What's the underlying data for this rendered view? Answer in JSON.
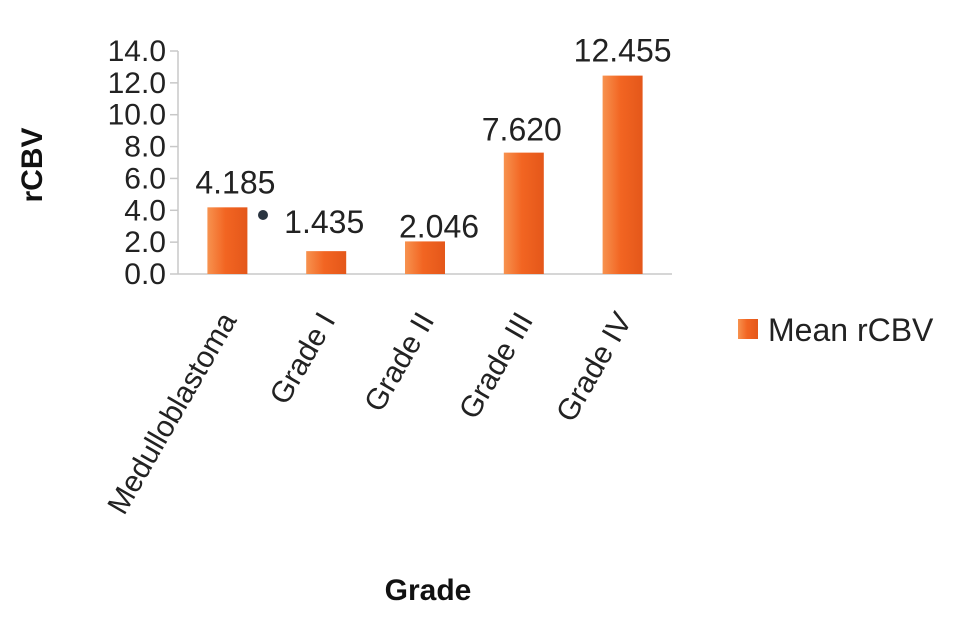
{
  "chart_data": {
    "type": "bar",
    "categories": [
      "Medulloblastoma",
      "Grade I",
      "Grade II",
      "Grade III",
      "Grade IV"
    ],
    "series": [
      {
        "name": "Mean rCBV",
        "values": [
          4.185,
          1.435,
          2.046,
          7.62,
          12.455
        ],
        "labels": [
          "4.185",
          "1.435",
          "2.046",
          "7.620",
          "12.455"
        ],
        "color": "#f26522"
      }
    ],
    "xlabel": "Grade",
    "ylabel": "rCBV",
    "ylim": [
      0,
      14
    ],
    "yticks": [
      "0.0",
      "2.0",
      "4.0",
      "6.0",
      "8.0",
      "10.0",
      "12.0",
      "14.0"
    ],
    "grid": false,
    "legend_position": "right"
  }
}
